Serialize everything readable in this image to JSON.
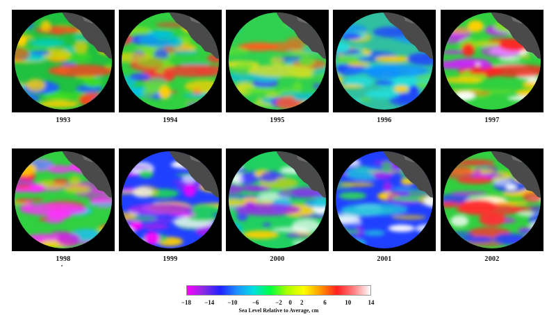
{
  "panels": [
    {
      "year": "1993",
      "variant": 0
    },
    {
      "year": "1994",
      "variant": 1
    },
    {
      "year": "1995",
      "variant": 2
    },
    {
      "year": "1996",
      "variant": 3
    },
    {
      "year": "1997",
      "variant": 4
    },
    {
      "year": "1998",
      "variant": 5
    },
    {
      "year": "1999",
      "variant": 6
    },
    {
      "year": "2000",
      "variant": 7
    },
    {
      "year": "2001",
      "variant": 8
    },
    {
      "year": "2002",
      "variant": 9
    }
  ],
  "colorbar": {
    "title": "Sea Level Relative to Average, cm",
    "ticks": [
      "−18",
      "−14",
      "−10",
      "−6",
      "−2",
      "0",
      "2",
      "6",
      "10",
      "14"
    ],
    "tick_values": [
      -18,
      -14,
      -10,
      -6,
      -2,
      0,
      2,
      6,
      10,
      14
    ],
    "range": [
      -18,
      14
    ],
    "colors": [
      "#ff00ff",
      "#8a2be2",
      "#2020ff",
      "#1e90ff",
      "#00e0e0",
      "#00ff40",
      "#aaff00",
      "#ffff00",
      "#ff9900",
      "#ff2020",
      "#ff8080",
      "#ffffff"
    ]
  },
  "colors": {
    "ocean_base": "#22cc44",
    "land": "#4a4a4a",
    "background": "#000000"
  }
}
